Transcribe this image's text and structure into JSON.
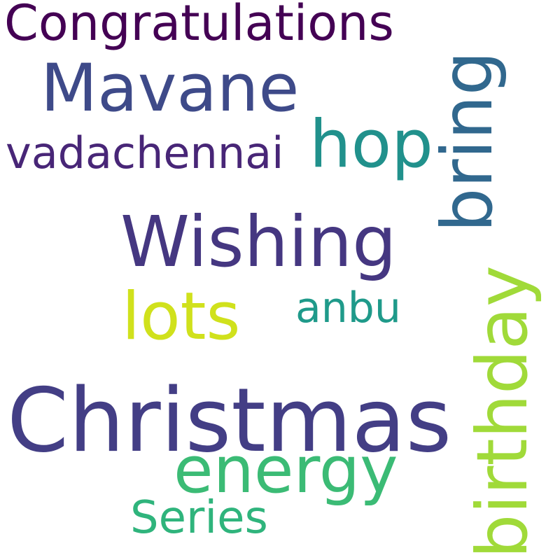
{
  "words": {
    "congratulations": {
      "text": "Congratulations",
      "color": "#440154"
    },
    "mavane": {
      "text": "Mavane",
      "color": "#3e4a89"
    },
    "vadachennai": {
      "text": "vadachennai",
      "color": "#482677"
    },
    "hop": {
      "text": "hop",
      "color": "#21918c"
    },
    "bring": {
      "text": "bring",
      "color": "#31688e"
    },
    "wishing": {
      "text": "Wishing",
      "color": "#453781"
    },
    "lots": {
      "text": "lots",
      "color": "#d0e11c"
    },
    "anbu": {
      "text": "anbu",
      "color": "#1f9a8a"
    },
    "birthday": {
      "text": "birthday",
      "color": "#a0da39"
    },
    "christmas": {
      "text": "Christmas",
      "color": "#433e85"
    },
    "energy": {
      "text": "energy",
      "color": "#3bbb75"
    },
    "series": {
      "text": "Series",
      "color": "#2fb47c"
    }
  }
}
